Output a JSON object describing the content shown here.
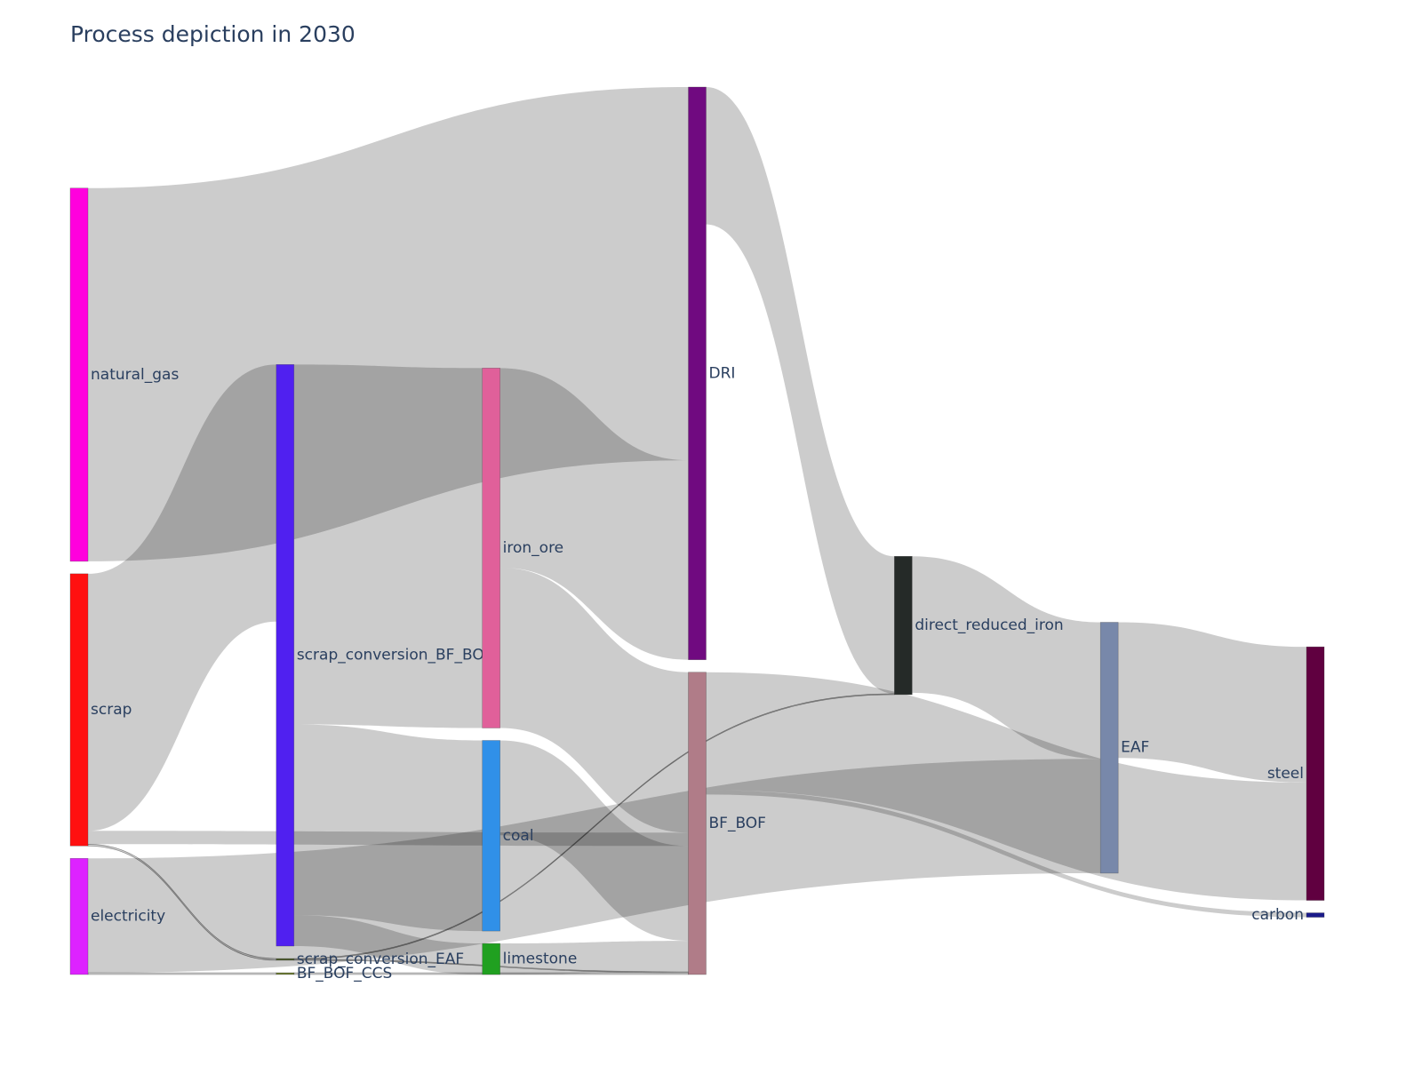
{
  "chart_data": {
    "type": "sankey",
    "title": "Process depiction in 2030",
    "nodes": {
      "labels": [
        "natural_gas",
        "scrap",
        "electricity",
        "scrap_conversion_BF_BOF",
        "scrap_conversion_EAF",
        "BF_BOF_CCS",
        "iron_ore",
        "coal",
        "limestone",
        "DRI",
        "BF_BOF",
        "direct_reduced_iron",
        "EAF",
        "steel",
        "carbon"
      ],
      "colors": [
        "#ff00dd",
        "#ff1010",
        "#dd22ff",
        "#5020f0",
        "#4a5a2a",
        "#6b7a30",
        "#e0609a",
        "#3090e8",
        "#20a020",
        "#700a80",
        "#b07c88",
        "#252a28",
        "#7888aa",
        "#600040",
        "#1a1a8a"
      ]
    },
    "links": {
      "source": [
        0,
        1,
        1,
        1,
        2,
        2,
        3,
        3,
        3,
        4,
        4,
        5,
        6,
        6,
        7,
        8,
        9,
        11,
        12,
        10,
        10
      ],
      "target": [
        9,
        3,
        10,
        4,
        12,
        5,
        6,
        7,
        8,
        11,
        10,
        10,
        9,
        10,
        10,
        10,
        11,
        12,
        13,
        13,
        14
      ],
      "values": [
        421,
        290,
        15,
        2,
        129,
        2,
        406,
        215,
        35,
        1,
        1,
        2,
        225,
        181,
        107,
        35,
        155,
        154,
        153,
        133,
        5
      ]
    },
    "link_color": "rgba(0,0,0,0.2)"
  }
}
